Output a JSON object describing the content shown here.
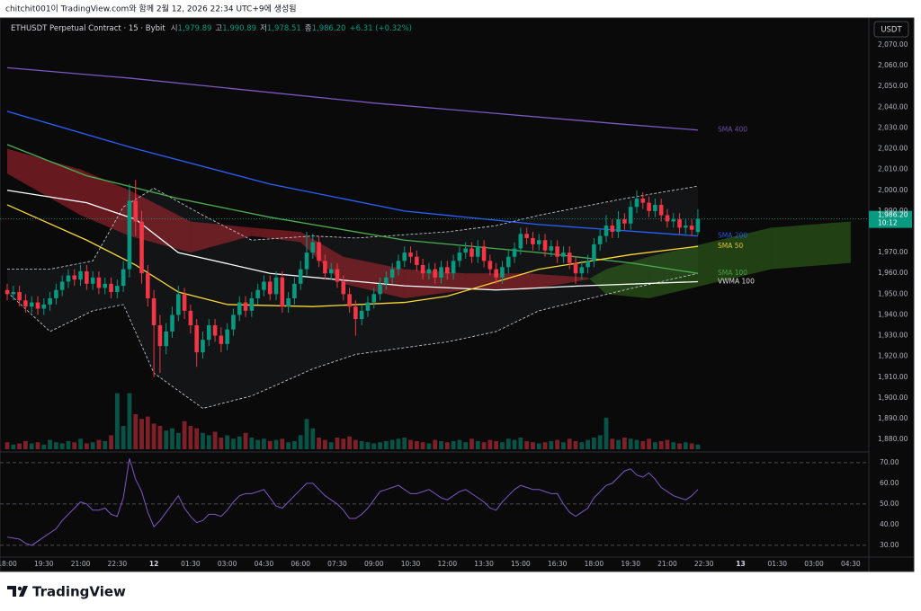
{
  "caption": "chitchit001이 TradingView.com와 함께 2월 12, 2026 22:34 UTC+9에 생성됨",
  "legend": {
    "symbol": "ETHUSDT Perpetual Contract · 15 · Bybit",
    "open_label": "시",
    "open": "1,979.89",
    "high_label": "고",
    "high": "1,990.89",
    "low_label": "저",
    "low": "1,978.51",
    "close_label": "종",
    "close": "1,986.20",
    "change": "+6.31 (+0.32%)"
  },
  "currency_button": "USDT",
  "footer": {
    "logo": "TradingView"
  },
  "chart_data": {
    "type": "candlestick",
    "up_color": "#089981",
    "down_color": "#f23645",
    "xlim": [
      -1.18,
      140.97
    ],
    "ylim": [
      1875.3,
      2082.1
    ],
    "xticks": [
      {
        "value": 0,
        "label": "18:00"
      },
      {
        "value": 6,
        "label": "19:30"
      },
      {
        "value": 12,
        "label": "21:00"
      },
      {
        "value": 18,
        "label": "22:30"
      },
      {
        "value": 24,
        "label": "12"
      },
      {
        "value": 30,
        "label": "01:30"
      },
      {
        "value": 36,
        "label": "03:00"
      },
      {
        "value": 42,
        "label": "04:30"
      },
      {
        "value": 48,
        "label": "06:00"
      },
      {
        "value": 54,
        "label": "07:30"
      },
      {
        "value": 60,
        "label": "09:00"
      },
      {
        "value": 66,
        "label": "10:30"
      },
      {
        "value": 72,
        "label": "12:00"
      },
      {
        "value": 78,
        "label": "13:30"
      },
      {
        "value": 84,
        "label": "15:00"
      },
      {
        "value": 90,
        "label": "16:30"
      },
      {
        "value": 96,
        "label": "18:00"
      },
      {
        "value": 102,
        "label": "19:30"
      },
      {
        "value": 108,
        "label": "21:00"
      },
      {
        "value": 114,
        "label": "22:30"
      },
      {
        "value": 120,
        "label": "13"
      },
      {
        "value": 126,
        "label": "01:30"
      },
      {
        "value": 132,
        "label": "03:00"
      },
      {
        "value": 138,
        "label": "04:30"
      }
    ],
    "yticks": [
      {
        "value": 2070,
        "label": "2,070.00"
      },
      {
        "value": 2060,
        "label": "2,060.00"
      },
      {
        "value": 2050,
        "label": "2,050.00"
      },
      {
        "value": 2040,
        "label": "2,040.00"
      },
      {
        "value": 2030,
        "label": "2,030.00"
      },
      {
        "value": 2020,
        "label": "2,020.00"
      },
      {
        "value": 2010,
        "label": "2,010.00"
      },
      {
        "value": 2000,
        "label": "2,000.00"
      },
      {
        "value": 1990,
        "label": "1,990.00"
      },
      {
        "value": 1970,
        "label": "1,970.00"
      },
      {
        "value": 1960,
        "label": "1,960.00"
      },
      {
        "value": 1950,
        "label": "1,950.00"
      },
      {
        "value": 1940,
        "label": "1,940.00"
      },
      {
        "value": 1930,
        "label": "1,930.00"
      },
      {
        "value": 1920,
        "label": "1,920.00"
      },
      {
        "value": 1910,
        "label": "1,910.00"
      },
      {
        "value": 1900,
        "label": "1,900.00"
      },
      {
        "value": 1890,
        "label": "1,890.00"
      },
      {
        "value": 1880,
        "label": "1,880.00"
      }
    ],
    "open": [
      1952,
      1950,
      1951,
      1947,
      1944,
      1946,
      1943,
      1945,
      1948,
      1952,
      1956,
      1959,
      1957,
      1961,
      1955,
      1958,
      1953,
      1955,
      1951,
      1954,
      1962,
      1995,
      1985,
      1960,
      1948,
      1935,
      1925,
      1932,
      1940,
      1950,
      1942,
      1935,
      1922,
      1928,
      1935,
      1930,
      1926,
      1933,
      1940,
      1946,
      1942,
      1948,
      1952,
      1956,
      1950,
      1958,
      1944,
      1948,
      1955,
      1962,
      1970,
      1975,
      1966,
      1960,
      1962,
      1956,
      1950,
      1944,
      1938,
      1942,
      1946,
      1950,
      1955,
      1958,
      1962,
      1966,
      1970,
      1968,
      1964,
      1960,
      1962,
      1958,
      1963,
      1960,
      1966,
      1970,
      1972,
      1968,
      1973,
      1966,
      1962,
      1958,
      1963,
      1968,
      1972,
      1979,
      1977,
      1974,
      1976,
      1971,
      1973,
      1968,
      1970,
      1965,
      1960,
      1963,
      1966,
      1974,
      1978,
      1983,
      1980,
      1986,
      1984,
      1992,
      1996,
      1994,
      1990,
      1993,
      1988,
      1985,
      1986,
      1982,
      1983,
      1979.89
    ],
    "high": [
      1955,
      1954,
      1954,
      1950,
      1949,
      1949,
      1948,
      1951,
      1955,
      1959,
      1962,
      1962,
      1964,
      1964,
      1961,
      1961,
      1958,
      1958,
      1957,
      1966,
      2003,
      2005,
      1990,
      1964,
      1952,
      1940,
      1936,
      1944,
      1954,
      1953,
      1945,
      1938,
      1932,
      1938,
      1938,
      1934,
      1936,
      1943,
      1949,
      1949,
      1951,
      1955,
      1959,
      1959,
      1961,
      1961,
      1951,
      1958,
      1966,
      1980,
      1979,
      1978,
      1969,
      1965,
      1965,
      1959,
      1953,
      1947,
      1945,
      1949,
      1953,
      1958,
      1961,
      1965,
      1969,
      1973,
      1973,
      1971,
      1967,
      1965,
      1965,
      1966,
      1966,
      1969,
      1973,
      1975,
      1975,
      1976,
      1976,
      1969,
      1965,
      1966,
      1971,
      1975,
      1982,
      1982,
      1980,
      1979,
      1979,
      1976,
      1976,
      1973,
      1973,
      1968,
      1966,
      1969,
      1977,
      1981,
      1988,
      1986,
      1990,
      1989,
      1995,
      2000,
      1999,
      1997,
      1996,
      1996,
      1991,
      1989,
      1989,
      1986,
      1986,
      1990.89
    ],
    "low": [
      1947,
      1947,
      1944,
      1941,
      1941,
      1940,
      1940,
      1942,
      1945,
      1949,
      1953,
      1954,
      1954,
      1952,
      1952,
      1950,
      1950,
      1948,
      1948,
      1951,
      1958,
      1978,
      1955,
      1944,
      1910,
      1912,
      1921,
      1929,
      1937,
      1938,
      1931,
      1915,
      1919,
      1925,
      1927,
      1922,
      1923,
      1930,
      1937,
      1939,
      1939,
      1945,
      1949,
      1947,
      1947,
      1941,
      1941,
      1945,
      1952,
      1959,
      1967,
      1963,
      1957,
      1957,
      1953,
      1947,
      1941,
      1930,
      1935,
      1939,
      1943,
      1947,
      1952,
      1955,
      1959,
      1963,
      1965,
      1961,
      1957,
      1957,
      1955,
      1955,
      1957,
      1957,
      1963,
      1967,
      1965,
      1965,
      1963,
      1959,
      1955,
      1955,
      1960,
      1965,
      1969,
      1974,
      1971,
      1971,
      1968,
      1968,
      1965,
      1965,
      1962,
      1955,
      1957,
      1960,
      1963,
      1971,
      1975,
      1977,
      1977,
      1981,
      1981,
      1989,
      1991,
      1987,
      1987,
      1985,
      1982,
      1982,
      1979,
      1979,
      1978,
      1978.51
    ],
    "close": [
      1950,
      1951,
      1947,
      1944,
      1946,
      1943,
      1945,
      1948,
      1952,
      1956,
      1959,
      1957,
      1961,
      1955,
      1958,
      1953,
      1955,
      1951,
      1954,
      1962,
      1995,
      1985,
      1960,
      1948,
      1935,
      1925,
      1932,
      1940,
      1950,
      1942,
      1935,
      1922,
      1928,
      1935,
      1930,
      1926,
      1933,
      1940,
      1946,
      1942,
      1948,
      1952,
      1956,
      1950,
      1958,
      1944,
      1948,
      1955,
      1962,
      1970,
      1975,
      1966,
      1960,
      1962,
      1956,
      1950,
      1944,
      1938,
      1942,
      1946,
      1950,
      1955,
      1958,
      1962,
      1966,
      1970,
      1968,
      1964,
      1960,
      1962,
      1958,
      1963,
      1960,
      1966,
      1970,
      1972,
      1968,
      1973,
      1966,
      1962,
      1958,
      1963,
      1968,
      1972,
      1979,
      1977,
      1974,
      1976,
      1971,
      1973,
      1968,
      1970,
      1965,
      1960,
      1963,
      1966,
      1974,
      1978,
      1983,
      1980,
      1986,
      1984,
      1992,
      1996,
      1994,
      1990,
      1993,
      1988,
      1985,
      1986,
      1982,
      1983,
      1981,
      1986.2
    ],
    "volume_ylim": [
      0,
      100
    ],
    "volume": [
      6,
      4,
      5,
      7,
      5,
      6,
      4,
      8,
      6,
      5,
      7,
      6,
      9,
      5,
      6,
      8,
      7,
      12,
      48,
      20,
      48,
      30,
      26,
      28,
      22,
      20,
      16,
      18,
      14,
      24,
      20,
      18,
      14,
      12,
      15,
      10,
      12,
      9,
      11,
      14,
      10,
      8,
      9,
      7,
      8,
      9,
      6,
      7,
      12,
      26,
      18,
      10,
      8,
      6,
      10,
      9,
      11,
      8,
      7,
      6,
      5,
      6,
      7,
      8,
      9,
      10,
      8,
      7,
      6,
      5,
      8,
      7,
      6,
      7,
      8,
      6,
      9,
      7,
      6,
      8,
      7,
      6,
      9,
      8,
      10,
      7,
      6,
      5,
      6,
      7,
      8,
      6,
      9,
      7,
      6,
      8,
      10,
      12,
      27,
      9,
      8,
      10,
      9,
      8,
      7,
      9,
      6,
      7,
      8,
      6,
      5,
      6,
      5,
      4
    ],
    "lines": [
      {
        "name": "SMA 400",
        "color": "#7e57c2",
        "x": [
          0,
          20,
          40,
          60,
          80,
          100,
          113
        ],
        "values": [
          2059,
          2054,
          2048,
          2042,
          2037,
          2032,
          2029
        ]
      },
      {
        "name": "SMA 200",
        "color": "#2962ff",
        "x": [
          0,
          21,
          43,
          65,
          87,
          113
        ],
        "values": [
          2038,
          2020,
          2003,
          1990,
          1983.5,
          1978
        ]
      },
      {
        "name": "SMA 100",
        "color": "#4caf50",
        "x": [
          0,
          13,
          28,
          43,
          65,
          87,
          102,
          113
        ],
        "values": [
          2022,
          2007,
          1996,
          1987,
          1976,
          1970,
          1965,
          1960
        ]
      },
      {
        "name": "VWMA 100",
        "color": "#ffffff",
        "x": [
          0,
          13,
          21,
          28,
          43,
          65,
          80,
          94,
          113
        ],
        "values": [
          2000,
          1994,
          1986,
          1970,
          1960,
          1954,
          1952,
          1954,
          1956
        ]
      },
      {
        "name": "SMA 50",
        "color": "#fdd835",
        "x": [
          0,
          13,
          21,
          28,
          36,
          50,
          65,
          72,
          87,
          102,
          113
        ],
        "values": [
          1993,
          1976,
          1964,
          1951,
          1945,
          1944,
          1946,
          1949,
          1962,
          1969,
          1973
        ]
      }
    ],
    "bands": {
      "x": [
        0,
        7,
        14,
        19,
        24,
        32,
        40,
        50,
        57,
        72,
        80,
        87,
        101,
        113
      ],
      "upper": [
        1962,
        1962,
        1966,
        1992,
        2001,
        1988,
        1976,
        1978,
        1977,
        1980,
        1983,
        1988,
        1996,
        2002
      ],
      "lower": [
        1951,
        1932,
        1942,
        1945,
        1912,
        1895,
        1901,
        1914,
        1921,
        1927,
        1932,
        1942,
        1952,
        1960
      ]
    },
    "cloud": {
      "x": [
        0,
        12,
        20,
        30,
        40,
        48,
        55,
        65,
        75,
        85,
        95,
        98,
        105,
        115,
        125,
        138
      ],
      "span_a": [
        2008,
        1988,
        1978,
        1970,
        1978,
        1975,
        1955,
        1948,
        1952,
        1952,
        1957,
        1962,
        1968,
        1975,
        1982,
        1985
      ],
      "span_b": [
        2020,
        2010,
        2000,
        1985,
        1982,
        1980,
        1968,
        1962,
        1960,
        1960,
        1958,
        1950,
        1948,
        1955,
        1962,
        1965
      ]
    },
    "price_tag": {
      "value": 1986.2,
      "label": "1,986.20",
      "countdown": "10:12"
    },
    "rsi": {
      "color": "#7e57c2",
      "ylim": [
        24.3,
        74.3
      ],
      "guides": [
        70,
        50,
        30
      ],
      "yticks": [
        {
          "value": 70,
          "label": "70.00"
        },
        {
          "value": 60,
          "label": "60.00"
        },
        {
          "value": 50,
          "label": "50.00"
        },
        {
          "value": 40,
          "label": "40.00"
        },
        {
          "value": 30,
          "label": "30.00"
        }
      ],
      "values": [
        34,
        33.5,
        33,
        31,
        30,
        32,
        34,
        36,
        38,
        42,
        45,
        48,
        51,
        50,
        47,
        47,
        48,
        45,
        44,
        53,
        72,
        62,
        56,
        46,
        39,
        42,
        46,
        50,
        54,
        48,
        44,
        41,
        42,
        45,
        45,
        44,
        47,
        51,
        54,
        55,
        55,
        56,
        57,
        53,
        49,
        48,
        51,
        54,
        57,
        60,
        60,
        57,
        54,
        52,
        50,
        47,
        43,
        43,
        45,
        48,
        52,
        56,
        57,
        58,
        59,
        57,
        55,
        55,
        56,
        57,
        55,
        53,
        52,
        54,
        56,
        57,
        55,
        53,
        51,
        48,
        47,
        51,
        54,
        57,
        59,
        58,
        57,
        57,
        56,
        55,
        55,
        50,
        46,
        44,
        46,
        48,
        53,
        56,
        59,
        60,
        63,
        66,
        67,
        64,
        63,
        65,
        62,
        58,
        56,
        54,
        53,
        52,
        54,
        57
      ]
    }
  }
}
